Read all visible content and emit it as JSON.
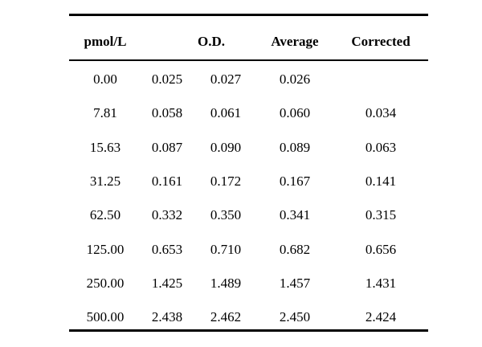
{
  "table": {
    "headers": {
      "conc": "pmol/L",
      "od": "O.D.",
      "average": "Average",
      "corrected": "Corrected"
    },
    "rows": [
      {
        "conc": "0.00",
        "od1": "0.025",
        "od2": "0.027",
        "average": "0.026",
        "corrected": ""
      },
      {
        "conc": "7.81",
        "od1": "0.058",
        "od2": "0.061",
        "average": "0.060",
        "corrected": "0.034"
      },
      {
        "conc": "15.63",
        "od1": "0.087",
        "od2": "0.090",
        "average": "0.089",
        "corrected": "0.063"
      },
      {
        "conc": "31.25",
        "od1": "0.161",
        "od2": "0.172",
        "average": "0.167",
        "corrected": "0.141"
      },
      {
        "conc": "62.50",
        "od1": "0.332",
        "od2": "0.350",
        "average": "0.341",
        "corrected": "0.315"
      },
      {
        "conc": "125.00",
        "od1": "0.653",
        "od2": "0.710",
        "average": "0.682",
        "corrected": "0.656"
      },
      {
        "conc": "250.00",
        "od1": "1.425",
        "od2": "1.489",
        "average": "1.457",
        "corrected": "1.431"
      },
      {
        "conc": "500.00",
        "od1": "2.438",
        "od2": "2.462",
        "average": "2.450",
        "corrected": "2.424"
      }
    ]
  }
}
